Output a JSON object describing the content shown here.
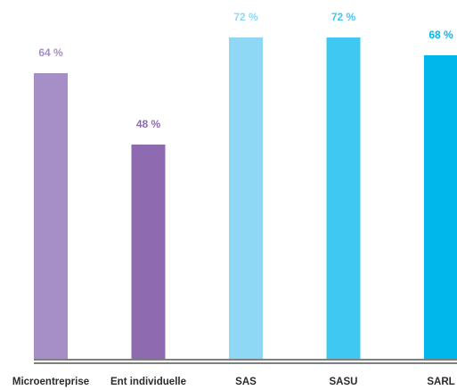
{
  "chart_data": {
    "type": "bar",
    "categories": [
      "Microentreprise",
      "Ent individuelle",
      "SAS",
      "SASU",
      "SARL"
    ],
    "values": [
      64,
      48,
      72,
      72,
      68
    ],
    "value_labels": [
      "64 %",
      "48 %",
      "72 %",
      "72 %",
      "68 %"
    ],
    "colors": [
      "#a58fc6",
      "#8e6bb0",
      "#8fd8f5",
      "#3fc8f2",
      "#00b7ec"
    ],
    "ylim": [
      0,
      75
    ]
  }
}
